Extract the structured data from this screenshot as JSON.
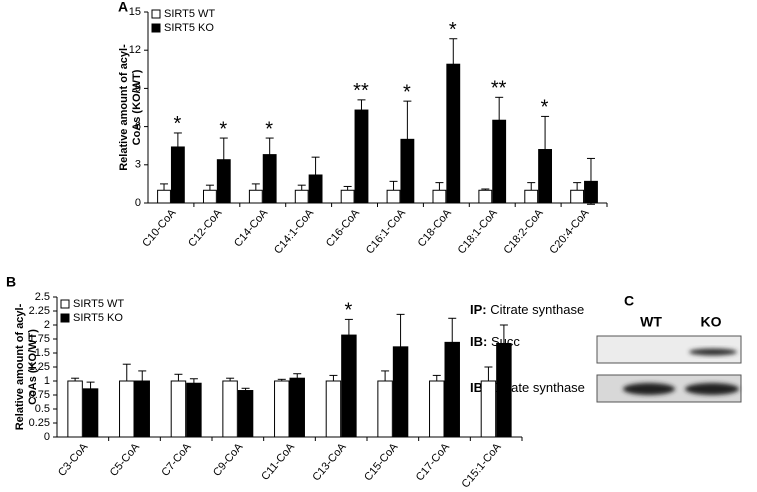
{
  "chart_data": [
    {
      "type": "bar",
      "label": "A",
      "ylabel": [
        "Relative amount of acyl-",
        "CoAs (KO/WT)"
      ],
      "categories": [
        "C10-CoA",
        "C12-CoA",
        "C14-CoA",
        "C14:1-CoA",
        "C16-CoA",
        "C16:1-CoA",
        "C18-CoA",
        "C18:1-CoA",
        "C18:2-CoA",
        "C20:4-CoA"
      ],
      "series": [
        {
          "name": "SIRT5 WT",
          "color": "#ffffff",
          "values": [
            1,
            1,
            1,
            1,
            1,
            1,
            1,
            1,
            1,
            1
          ],
          "errors": [
            0.5,
            0.4,
            0.5,
            0.4,
            0.3,
            0.7,
            0.6,
            0.1,
            0.6,
            0.6
          ]
        },
        {
          "name": "SIRT5 KO",
          "color": "#000000",
          "values": [
            4.4,
            3.4,
            3.8,
            2.2,
            7.3,
            5.0,
            10.9,
            6.5,
            4.2,
            1.7
          ],
          "errors": [
            1.1,
            1.7,
            1.3,
            1.4,
            0.8,
            3.0,
            2.0,
            1.8,
            2.6,
            1.8
          ]
        }
      ],
      "annotations": [
        "*",
        "*",
        "*",
        null,
        "**",
        "*",
        "*",
        "**",
        "*",
        null
      ],
      "ylim": [
        0,
        15
      ],
      "yticks": [
        0,
        3,
        6,
        9,
        12,
        15
      ],
      "legend": "upper left"
    },
    {
      "type": "bar",
      "label": "B",
      "ylabel": [
        "Relative amount of acyl-",
        "CoAs (KO/WT)"
      ],
      "categories": [
        "C3-CoA",
        "C5-CoA",
        "C7-CoA",
        "C9-CoA",
        "C11-CoA",
        "C13-CoA",
        "C15-CoA",
        "C17-CoA",
        "C15:1-CoA"
      ],
      "series": [
        {
          "name": "SIRT5 WT",
          "color": "#ffffff",
          "values": [
            1,
            1,
            1,
            1,
            1,
            1,
            1,
            1,
            1
          ],
          "errors": [
            0.05,
            0.3,
            0.12,
            0.05,
            0.03,
            0.1,
            0.18,
            0.1,
            0.25
          ]
        },
        {
          "name": "SIRT5 KO",
          "color": "#000000",
          "values": [
            0.86,
            1.0,
            0.96,
            0.83,
            1.05,
            1.82,
            1.61,
            1.69,
            1.67
          ],
          "errors": [
            0.12,
            0.18,
            0.08,
            0.04,
            0.08,
            0.28,
            0.58,
            0.43,
            0.33
          ]
        }
      ],
      "annotations": [
        null,
        null,
        null,
        null,
        null,
        "*",
        null,
        null,
        null
      ],
      "ylim": [
        0,
        2.5
      ],
      "yticks": [
        0,
        0.25,
        0.5,
        0.75,
        1,
        1.25,
        1.5,
        1.75,
        2,
        2.25,
        2.5
      ],
      "legend": "upper left"
    }
  ],
  "blot": {
    "label": "C",
    "lanes": [
      "WT",
      "KO"
    ],
    "rows": [
      {
        "prefix": "IP:",
        "text": "Citrate synthase"
      },
      {
        "prefix": "IB:",
        "text": "Succ"
      },
      {
        "prefix": "IB:",
        "text": "Citrate synthase"
      }
    ]
  }
}
